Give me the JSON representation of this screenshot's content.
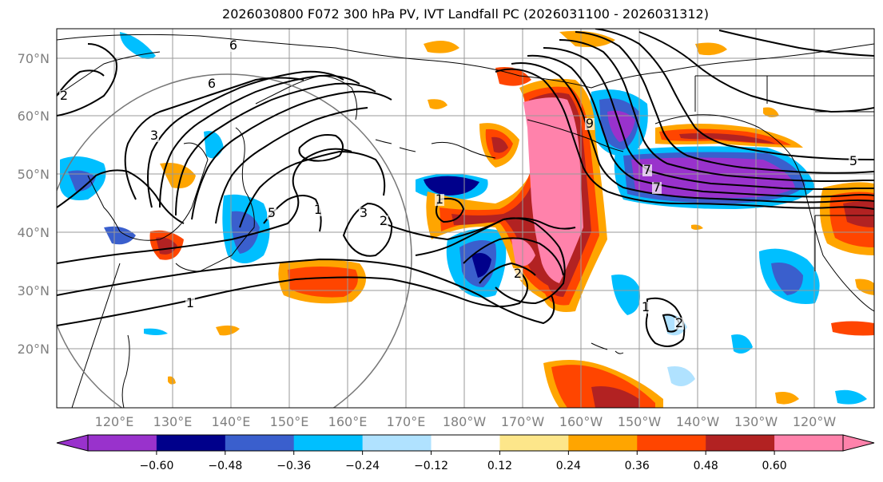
{
  "title": "2026030800 F072 300 hPa PV, IVT Landfall PC (2026031100 - 2026031312)",
  "map": {
    "lat_labels": [
      "70°N",
      "60°N",
      "50°N",
      "40°N",
      "30°N",
      "20°N"
    ],
    "lon_labels": [
      "120°E",
      "130°E",
      "140°E",
      "150°E",
      "160°E",
      "170°E",
      "180°W",
      "170°W",
      "160°W",
      "150°W",
      "140°W",
      "130°W",
      "120°W"
    ],
    "contour_labels": [
      "1",
      "1",
      "1",
      "2",
      "2",
      "2",
      "3",
      "3",
      "5",
      "5",
      "6",
      "6",
      "7",
      "7",
      "9",
      "1",
      "2"
    ]
  },
  "colorbar": {
    "ticks": [
      "−0.60",
      "−0.48",
      "−0.36",
      "−0.24",
      "−0.12",
      "0.12",
      "0.24",
      "0.36",
      "0.48",
      "0.60"
    ],
    "colors": [
      "#9932cc",
      "#00008b",
      "#3a5fcd",
      "#00bfff",
      "#b0e2ff",
      "#ffffff",
      "#fde68a",
      "#ffa500",
      "#ff4500",
      "#b22222",
      "#ff82ab"
    ]
  }
}
